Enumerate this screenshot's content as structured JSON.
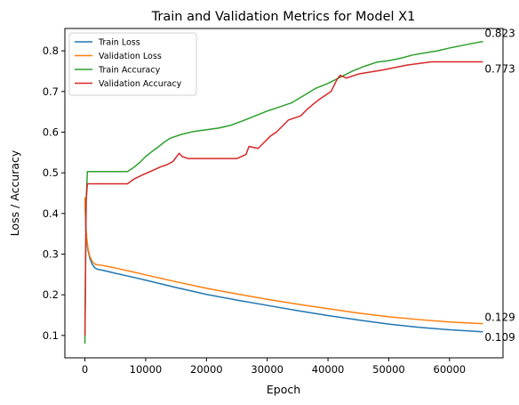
{
  "chart_data": {
    "type": "line",
    "title": "Train and Validation Metrics for Model X1",
    "xlabel": "Epoch",
    "ylabel": "Loss / Accuracy",
    "xlim": [
      -3300,
      68800
    ],
    "ylim": [
      0.045,
      0.855
    ],
    "xticks": [
      0,
      10000,
      20000,
      30000,
      40000,
      50000,
      60000
    ],
    "yticks": [
      0.1,
      0.2,
      0.3,
      0.4,
      0.5,
      0.6,
      0.7,
      0.8
    ],
    "grid": false,
    "legend_position": "top-left",
    "series": [
      {
        "name": "Train Loss",
        "color": "#1f77b4",
        "x": [
          0,
          150,
          300,
          500,
          800,
          1200,
          1600,
          2000,
          3000,
          5000,
          8000,
          10000,
          15000,
          20000,
          25000,
          30000,
          35000,
          40000,
          45000,
          50000,
          55000,
          60000,
          65500
        ],
        "y": [
          0.43,
          0.36,
          0.33,
          0.31,
          0.29,
          0.275,
          0.267,
          0.263,
          0.26,
          0.253,
          0.243,
          0.236,
          0.218,
          0.201,
          0.187,
          0.174,
          0.161,
          0.149,
          0.138,
          0.128,
          0.12,
          0.114,
          0.109
        ],
        "end_label": "0.109"
      },
      {
        "name": "Validation Loss",
        "color": "#ff7f0e",
        "x": [
          0,
          150,
          300,
          500,
          800,
          1200,
          1600,
          2000,
          3000,
          5000,
          8000,
          10000,
          15000,
          20000,
          25000,
          30000,
          35000,
          40000,
          45000,
          50000,
          55000,
          60000,
          65500
        ],
        "y": [
          0.44,
          0.37,
          0.34,
          0.315,
          0.295,
          0.282,
          0.276,
          0.274,
          0.272,
          0.266,
          0.256,
          0.249,
          0.232,
          0.216,
          0.202,
          0.189,
          0.177,
          0.166,
          0.155,
          0.146,
          0.139,
          0.133,
          0.129
        ],
        "end_label": "0.129"
      },
      {
        "name": "Train Accuracy",
        "color": "#2ca02c",
        "x": [
          0,
          200,
          400,
          600,
          7000,
          8000,
          9000,
          10000,
          11000,
          12000,
          13000,
          14000,
          16000,
          18000,
          20000,
          22000,
          24000,
          26000,
          28000,
          30000,
          32000,
          34000,
          36000,
          38000,
          40000,
          42000,
          44000,
          46000,
          48000,
          50000,
          52000,
          54000,
          56000,
          58000,
          60000,
          62000,
          64000,
          65500
        ],
        "y": [
          0.08,
          0.43,
          0.503,
          0.503,
          0.503,
          0.513,
          0.525,
          0.54,
          0.552,
          0.563,
          0.575,
          0.585,
          0.595,
          0.602,
          0.606,
          0.61,
          0.617,
          0.628,
          0.64,
          0.652,
          0.662,
          0.672,
          0.69,
          0.708,
          0.72,
          0.735,
          0.75,
          0.762,
          0.772,
          0.776,
          0.782,
          0.79,
          0.795,
          0.8,
          0.807,
          0.813,
          0.819,
          0.823
        ],
        "end_label": "0.823"
      },
      {
        "name": "Validation Accuracy",
        "color": "#d62728",
        "x": [
          0,
          200,
          400,
          700,
          7000,
          8000,
          9500,
          11000,
          12500,
          13500,
          14500,
          15500,
          16000,
          17000,
          25000,
          26500,
          27000,
          28500,
          29500,
          30500,
          31500,
          32500,
          33500,
          35500,
          36500,
          37500,
          38500,
          39500,
          40500,
          41000,
          41500,
          42000,
          43000,
          45000,
          49000,
          53000,
          57000,
          60000,
          65500
        ],
        "y": [
          0.1,
          0.43,
          0.473,
          0.473,
          0.473,
          0.484,
          0.495,
          0.505,
          0.515,
          0.52,
          0.528,
          0.548,
          0.54,
          0.535,
          0.535,
          0.545,
          0.565,
          0.56,
          0.575,
          0.59,
          0.6,
          0.615,
          0.63,
          0.64,
          0.655,
          0.668,
          0.68,
          0.69,
          0.7,
          0.715,
          0.73,
          0.74,
          0.733,
          0.743,
          0.753,
          0.765,
          0.773,
          0.773,
          0.773
        ],
        "end_label": "0.773"
      }
    ]
  }
}
